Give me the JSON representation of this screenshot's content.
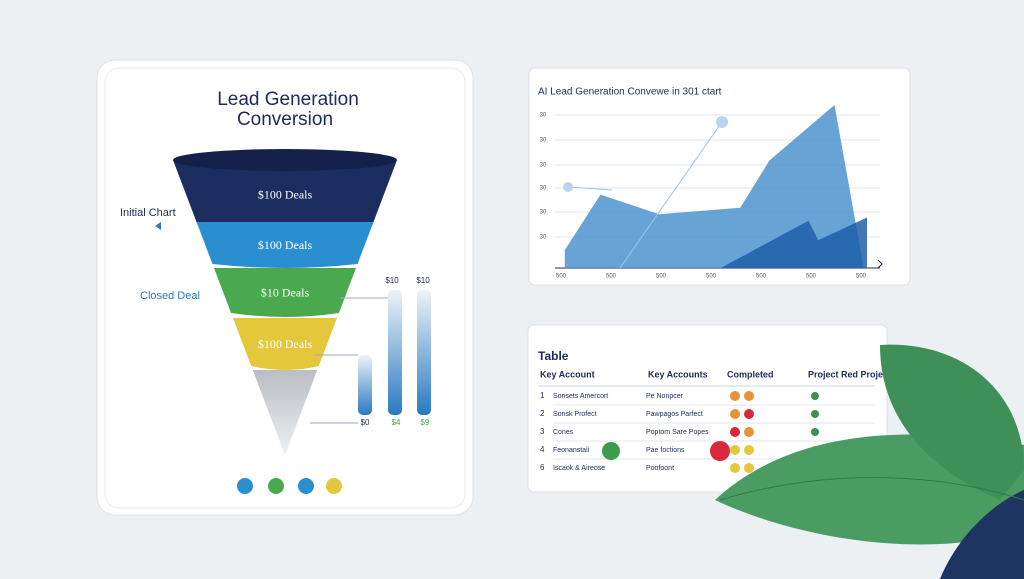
{
  "funnel_card": {
    "title_line1": "Lead Generation",
    "title_line2": "Conversion",
    "stages": [
      {
        "label": "$100 Deals",
        "color": "#1b2d5e"
      },
      {
        "label": "$100 Deals",
        "color": "#2a8fd0"
      },
      {
        "label": "$10 Deals",
        "color": "#4aa84f"
      },
      {
        "label": "$100 Deals",
        "color": "#e2c83a"
      }
    ],
    "side_labels": [
      "Initial Chart",
      "Closed Deal"
    ],
    "bar_top_labels": [
      "$10",
      "$10"
    ],
    "bar_bottom_labels": [
      "$0",
      "$4",
      "$9"
    ]
  },
  "chart_data": {
    "type": "area",
    "title": "AI Lead Generation Convewe in 301 ctart",
    "yticks": [
      "30",
      "30",
      "30",
      "30",
      "30",
      "30"
    ],
    "xticks": [
      "500",
      "500",
      "500",
      "500",
      "500",
      "500",
      "500"
    ],
    "xlim": [
      0,
      100
    ],
    "ylim": [
      0,
      100
    ],
    "series": [
      {
        "color": "#4d93cf",
        "x": [
          3,
          14,
          32,
          57,
          66,
          86,
          95
        ],
        "values": [
          11,
          45,
          33,
          37,
          66,
          100,
          0
        ]
      },
      {
        "color": "#1f5fa8",
        "x": [
          51,
          78,
          81,
          96
        ],
        "values": [
          0,
          29,
          17,
          31
        ]
      }
    ]
  },
  "table": {
    "title": "Table",
    "headers": [
      "Key Account",
      "Key Accounts",
      "Completed",
      "Project Red Project"
    ],
    "rows": [
      [
        "1",
        "Sonsets Amercort",
        "Pe Nonpcer"
      ],
      [
        "2",
        "Sonsk Profect",
        "Pawpagos Parfect"
      ],
      [
        "3",
        "Cones",
        "Poptom Sare Popes"
      ],
      [
        "4",
        "Feonanstali",
        "Pae foctions"
      ],
      [
        "6",
        "Iscaok & Aireose",
        "Poofoont"
      ]
    ]
  }
}
